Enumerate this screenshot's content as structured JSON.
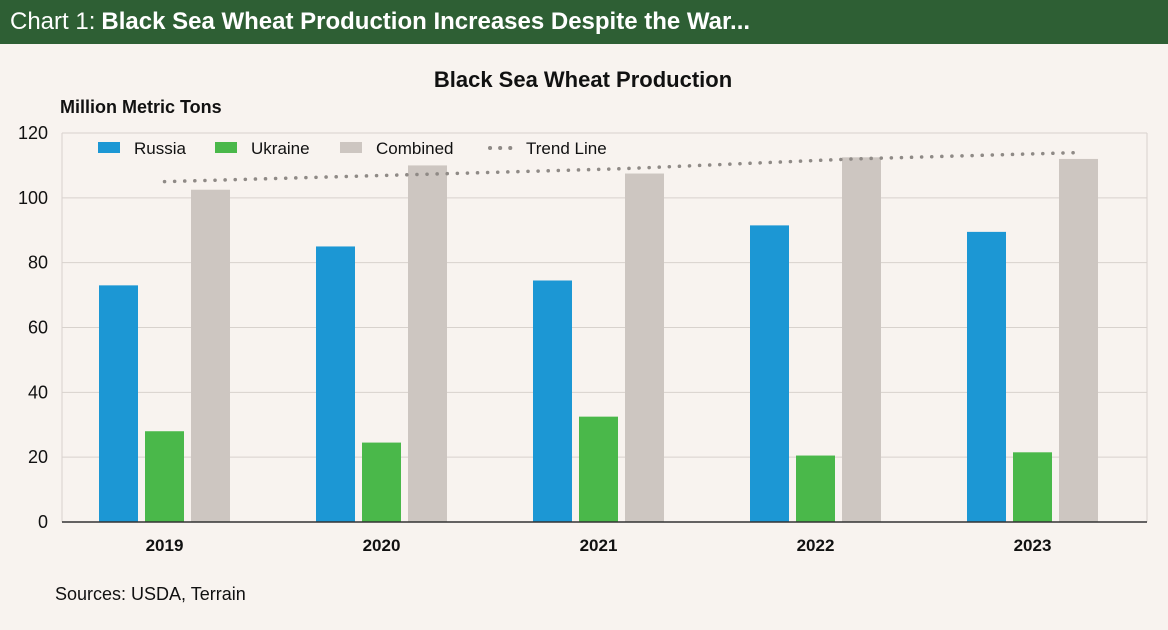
{
  "header": {
    "prefix": "Chart 1:",
    "title": "Black Sea Wheat Production Increases Despite the War..."
  },
  "source": "Sources: USDA, Terrain",
  "chart_data": {
    "type": "bar",
    "title": "Black Sea Wheat Production",
    "ylabel": "Million Metric Tons",
    "xlabel": "",
    "ylim": [
      0,
      120
    ],
    "yticks": [
      0,
      20,
      40,
      60,
      80,
      100,
      120
    ],
    "categories": [
      "2019",
      "2020",
      "2021",
      "2022",
      "2023"
    ],
    "series": [
      {
        "name": "Russia",
        "color": "#1c97d4",
        "values": [
          73,
          85,
          74.5,
          91.5,
          89.5
        ]
      },
      {
        "name": "Ukraine",
        "color": "#4ab84a",
        "values": [
          28,
          24.5,
          32.5,
          20.5,
          21.5
        ]
      },
      {
        "name": "Combined",
        "color": "#cdc6c1",
        "values": [
          102.5,
          110,
          107.5,
          112.5,
          112
        ]
      }
    ],
    "trend_line": {
      "name": "Trend Line",
      "color": "#8f8a86",
      "values": [
        105,
        107,
        109,
        112,
        114
      ]
    },
    "grid": true,
    "legend_position": "top-left"
  }
}
